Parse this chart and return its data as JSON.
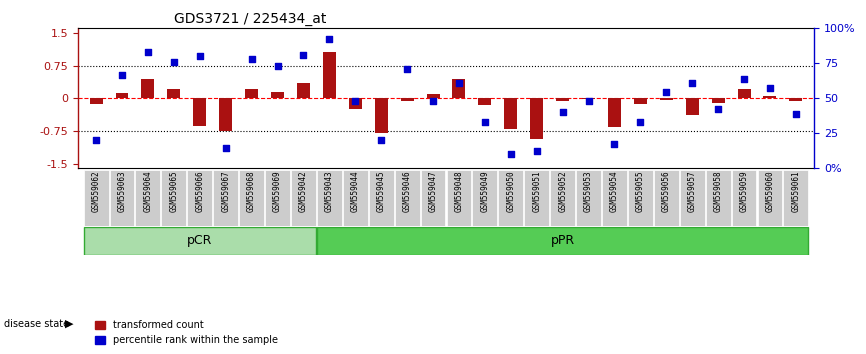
{
  "title": "GDS3721 / 225434_at",
  "samples": [
    "GSM559062",
    "GSM559063",
    "GSM559064",
    "GSM559065",
    "GSM559066",
    "GSM559067",
    "GSM559068",
    "GSM559069",
    "GSM559042",
    "GSM559043",
    "GSM559044",
    "GSM559045",
    "GSM559046",
    "GSM559047",
    "GSM559048",
    "GSM559049",
    "GSM559050",
    "GSM559051",
    "GSM559052",
    "GSM559053",
    "GSM559054",
    "GSM559055",
    "GSM559056",
    "GSM559057",
    "GSM559058",
    "GSM559059",
    "GSM559060",
    "GSM559061"
  ],
  "transformed_count": [
    -0.13,
    0.12,
    0.45,
    0.22,
    -0.62,
    -0.75,
    0.22,
    0.15,
    0.35,
    1.05,
    -0.25,
    -0.78,
    -0.05,
    0.1,
    0.45,
    -0.15,
    -0.7,
    -0.92,
    -0.05,
    -0.02,
    -0.65,
    -0.12,
    -0.03,
    -0.38,
    -0.1,
    0.22,
    0.05,
    -0.05
  ],
  "percentile_rank": [
    18,
    68,
    85,
    78,
    82,
    12,
    80,
    75,
    83,
    95,
    48,
    18,
    72,
    48,
    62,
    32,
    8,
    10,
    40,
    48,
    15,
    32,
    55,
    62,
    42,
    65,
    58,
    38
  ],
  "pCR_count": 9,
  "pPR_count": 19,
  "bar_color": "#aa1111",
  "dot_color": "#0000cc",
  "background_color": "#ffffff",
  "tick_bg_color": "#cccccc",
  "pCR_color": "#aaddaa",
  "pPR_color": "#55cc55",
  "ylim": [
    -1.6,
    1.6
  ],
  "yticks_left": [
    -1.5,
    -0.75,
    0,
    0.75,
    1.5
  ],
  "yticks_right": [
    0,
    25,
    50,
    75,
    100
  ],
  "hlines": [
    -0.75,
    0,
    0.75
  ],
  "hline_styles": [
    "dotted",
    "dashed",
    "dotted"
  ]
}
